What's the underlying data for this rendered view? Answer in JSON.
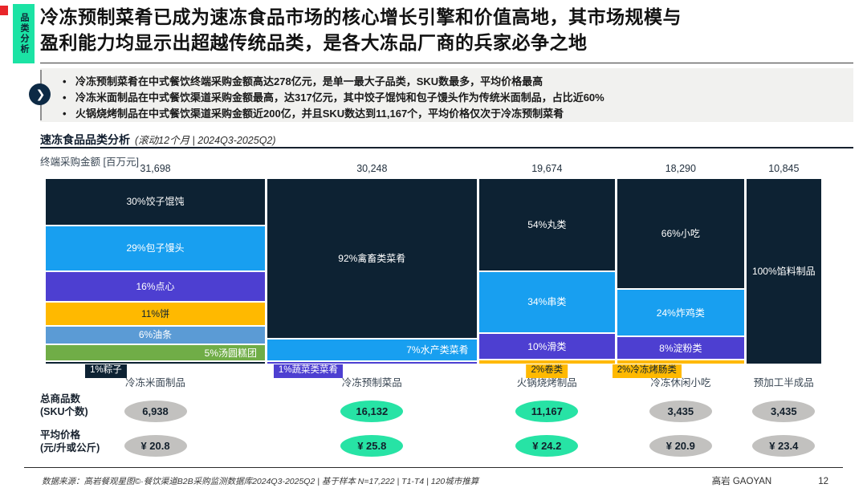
{
  "sidebar_tab": "品类分析",
  "title": "冷冻预制菜肴已成为速冻食品市场的核心增长引擎和价值高地，其市场规模与\n盈利能力均显示出超越传统品类，是各大冻品厂商的兵家必争之地",
  "bullets": [
    "冷冻预制菜肴在中式餐饮终端采购金额高达278亿元，是单一最大子品类，SKU数最多，平均价格最高",
    "冷冻米面制品在中式餐饮渠道采购金额最高，达317亿元，其中饺子馄饨和包子馒头作为传统米面制品，占比近60%",
    "火锅烧烤制品在中式餐饮渠道采购金额近200亿，并且SKU数达到11,167个，平均价格仅次于冷冻预制菜肴"
  ],
  "section": {
    "title": "速冻食品品类分析",
    "subtitle": "(滚动12个月 | 2024Q3-2025Q2)"
  },
  "rows": {
    "sku_label": "总商品数\n(SKU个数)",
    "price_label": "平均价格\n(元/升或公斤)"
  },
  "colors": {
    "accent_teal": "#1BE3A4",
    "oval_gray": "#C2C1BF",
    "navy": "#0D2233",
    "blue": "#189FF0",
    "purple": "#4D3FD1",
    "amber": "#FFB900",
    "steel_blue": "#5B9BD5",
    "green": "#70AD47"
  },
  "chart_data": {
    "type": "mekko",
    "title": "速冻食品品类分析 (滚动12个月 | 2024Q3-2025Q2)",
    "ylabel": "终端采购金额 [百万元]",
    "columns": [
      {
        "category": "冷冻米面制品",
        "total_label": "31,698",
        "total_value": 31698,
        "sku": "6,938",
        "sku_highlight": false,
        "price": "¥ 20.8",
        "price_highlight": false,
        "segments": [
          {
            "label": "30%饺子馄饨",
            "pct": 30,
            "color": "#0D2233",
            "text": "#FFFFFF"
          },
          {
            "label": "29%包子馒头",
            "pct": 29,
            "color": "#189FF0",
            "text": "#FFFFFF"
          },
          {
            "label": "16%点心",
            "pct": 16,
            "color": "#4D3FD1",
            "text": "#FFFFFF"
          },
          {
            "label": "11%饼",
            "pct": 11,
            "color": "#FFB900",
            "text": "#0D2233"
          },
          {
            "label": "6%油条",
            "pct": 6,
            "color": "#5B9BD5",
            "text": "#FFFFFF"
          },
          {
            "label": "5%汤圆糕团",
            "pct": 5,
            "color": "#70AD47",
            "text": "#FFFFFF",
            "align": "right"
          },
          {
            "label": "1%粽子",
            "pct": 1.2,
            "color": "#0D2233",
            "text": "#FFFFFF",
            "chip": true,
            "chip_left": "18%"
          }
        ]
      },
      {
        "category": "冷冻预制菜品",
        "total_label": "30,248",
        "total_value": 30248,
        "sku": "16,132",
        "sku_highlight": true,
        "price": "¥ 25.8",
        "price_highlight": true,
        "segments": [
          {
            "label": "92%禽畜类菜肴",
            "pct": 92,
            "color": "#0D2233",
            "text": "#FFFFFF"
          },
          {
            "label": "7%水产类菜肴",
            "pct": 7,
            "color": "#189FF0",
            "text": "#FFFFFF",
            "align": "right"
          },
          {
            "label": "1%蔬菜类菜肴",
            "pct": 1,
            "color": "#4D3FD1",
            "text": "#FFFFFF",
            "chip": true,
            "chip_left": "3%"
          }
        ]
      },
      {
        "category": "火锅烧烤制品",
        "total_label": "19,674",
        "total_value": 19674,
        "sku": "11,167",
        "sku_highlight": true,
        "price": "¥ 24.2",
        "price_highlight": true,
        "segments": [
          {
            "label": "54%丸类",
            "pct": 54,
            "color": "#0D2233",
            "text": "#FFFFFF"
          },
          {
            "label": "34%串类",
            "pct": 34,
            "color": "#189FF0",
            "text": "#FFFFFF"
          },
          {
            "label": "10%滑类",
            "pct": 10,
            "color": "#4D3FD1",
            "text": "#FFFFFF"
          },
          {
            "label": "2%卷类",
            "pct": 2,
            "color": "#FFB900",
            "text": "#0D2233",
            "chip": true,
            "chip_align": "center"
          }
        ]
      },
      {
        "category": "冷冻休闲小吃",
        "total_label": "18,290",
        "total_value": 18290,
        "sku": "3,435",
        "sku_highlight": false,
        "price": "¥ 20.9",
        "price_highlight": false,
        "segments": [
          {
            "label": "66%小吃",
            "pct": 66,
            "color": "#0D2233",
            "text": "#FFFFFF"
          },
          {
            "label": "24%炸鸡类",
            "pct": 24,
            "color": "#189FF0",
            "text": "#FFFFFF"
          },
          {
            "label": "8%淀粉类",
            "pct": 8,
            "color": "#4D3FD1",
            "text": "#FFFFFF"
          },
          {
            "label": "2%冷冻烤肠类",
            "pct": 2,
            "color": "#FFB900",
            "text": "#0D2233",
            "chip": true,
            "chip_left": "-4%"
          }
        ]
      },
      {
        "category": "预加工半成品",
        "total_label": "10,845",
        "total_value": 10845,
        "sku": "3,435",
        "sku_highlight": false,
        "price": "¥ 23.4",
        "price_highlight": false,
        "segments": [
          {
            "label": "100%馅料制品",
            "pct": 100,
            "color": "#0D2233",
            "text": "#FFFFFF"
          }
        ]
      }
    ]
  },
  "footer": {
    "source": "数据来源：高岩餐观星图©·餐饮渠道B2B采购监测数据库2024Q3-2025Q2 | 基于样本 N=17,222 | T1-T4 | 120城市推算",
    "brand": "高岩 GAOYAN",
    "page": "12"
  }
}
